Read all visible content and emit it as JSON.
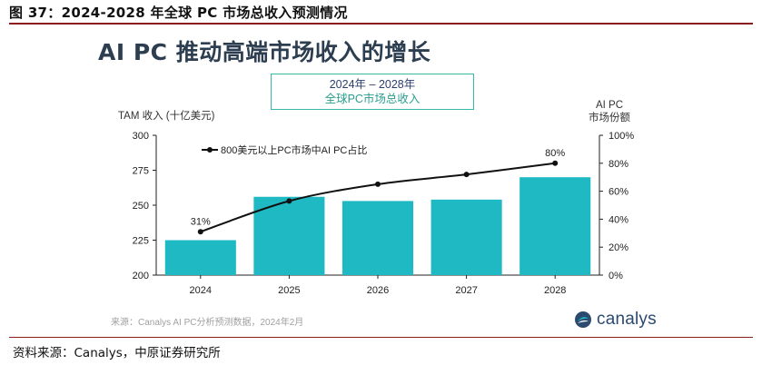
{
  "figure": {
    "caption": "图 37：2024-2028 年全球 PC 市场总收入预测情况",
    "source": "资料来源：Canalys，中原证券研究所"
  },
  "chart_header": {
    "title": "AI PC 推动高端市场收入的增长",
    "subtitle_line1": "2024年 – 2028年",
    "subtitle_line2": "全球PC市场总收入",
    "note": "来源：Canalys AI PC分析预测数据，2024年2月",
    "logo_text": "canalys"
  },
  "colors": {
    "bar": "#1fb9c4",
    "line": "#111111",
    "accent_border": "#37b7a5",
    "caption_rule": "#8c1d1d",
    "logo_primary": "#2b4a6f"
  },
  "chart_data": {
    "type": "bar",
    "categories": [
      "2024",
      "2025",
      "2026",
      "2027",
      "2028"
    ],
    "series": [
      {
        "name": "",
        "type": "bar",
        "axis": "left",
        "values": [
          225,
          256,
          253,
          254,
          270
        ]
      },
      {
        "name": "800美元以上PC市场中AI PC占比",
        "type": "line",
        "axis": "right",
        "values": [
          31,
          53,
          65,
          72,
          80
        ],
        "data_labels": [
          "31%",
          null,
          null,
          null,
          "80%"
        ]
      }
    ],
    "ylabel": "TAM 收入 (十亿美元)",
    "ylim": [
      200,
      300
    ],
    "yticks": [
      "200",
      "225",
      "250",
      "275",
      "300"
    ],
    "y2label_line1": "AI PC",
    "y2label_line2": "市场份额",
    "y2lim": [
      0,
      100
    ],
    "y2ticks": [
      "0%",
      "20%",
      "40%",
      "60%",
      "80%",
      "100%"
    ],
    "legend": "top-left",
    "grid": false
  }
}
